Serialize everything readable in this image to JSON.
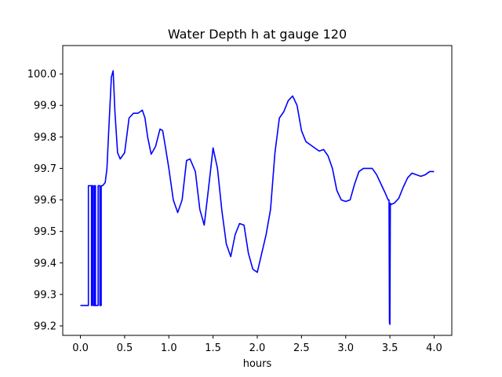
{
  "chart_data": {
    "type": "line",
    "title": "Water Depth h at gauge 120",
    "xlabel": "hours",
    "ylabel": "",
    "xlim": [
      -0.2,
      4.2
    ],
    "ylim": [
      99.17,
      100.09
    ],
    "grid": false,
    "x_ticks": [
      {
        "value": 0.0,
        "label": "0.0"
      },
      {
        "value": 0.5,
        "label": "0.5"
      },
      {
        "value": 1.0,
        "label": "1.0"
      },
      {
        "value": 1.5,
        "label": "1.5"
      },
      {
        "value": 2.0,
        "label": "2.0"
      },
      {
        "value": 2.5,
        "label": "2.5"
      },
      {
        "value": 3.0,
        "label": "3.0"
      },
      {
        "value": 3.5,
        "label": "3.5"
      },
      {
        "value": 4.0,
        "label": "4.0"
      }
    ],
    "y_ticks": [
      {
        "value": 99.2,
        "label": "99.2"
      },
      {
        "value": 99.3,
        "label": "99.3"
      },
      {
        "value": 99.4,
        "label": "99.4"
      },
      {
        "value": 99.5,
        "label": "99.5"
      },
      {
        "value": 99.6,
        "label": "99.6"
      },
      {
        "value": 99.7,
        "label": "99.7"
      },
      {
        "value": 99.8,
        "label": "99.8"
      },
      {
        "value": 99.9,
        "label": "99.9"
      },
      {
        "value": 100.0,
        "label": "100.0"
      }
    ],
    "series": [
      {
        "color": "#0000ff",
        "x": [
          0.0,
          0.09,
          0.09,
          0.125,
          0.125,
          0.13,
          0.13,
          0.145,
          0.145,
          0.16,
          0.16,
          0.17,
          0.17,
          0.2,
          0.2,
          0.22,
          0.22,
          0.235,
          0.235,
          0.25,
          0.28,
          0.3,
          0.32,
          0.35,
          0.37,
          0.39,
          0.42,
          0.45,
          0.5,
          0.55,
          0.6,
          0.65,
          0.7,
          0.73,
          0.76,
          0.8,
          0.85,
          0.9,
          0.93,
          0.96,
          1.0,
          1.05,
          1.1,
          1.15,
          1.2,
          1.24,
          1.3,
          1.35,
          1.4,
          1.45,
          1.5,
          1.55,
          1.6,
          1.65,
          1.7,
          1.75,
          1.8,
          1.85,
          1.9,
          1.95,
          2.0,
          2.05,
          2.1,
          2.15,
          2.2,
          2.25,
          2.3,
          2.35,
          2.4,
          2.45,
          2.5,
          2.55,
          2.6,
          2.65,
          2.7,
          2.75,
          2.8,
          2.85,
          2.9,
          2.95,
          3.0,
          3.05,
          3.1,
          3.15,
          3.2,
          3.25,
          3.3,
          3.35,
          3.4,
          3.45,
          3.48,
          3.49,
          3.495,
          3.5,
          3.505,
          3.51,
          3.55,
          3.6,
          3.65,
          3.7,
          3.75,
          3.8,
          3.85,
          3.9,
          3.95,
          4.0
        ],
        "y": [
          99.265,
          99.265,
          99.645,
          99.645,
          99.265,
          99.265,
          99.645,
          99.645,
          99.265,
          99.265,
          99.645,
          99.645,
          99.265,
          99.265,
          99.645,
          99.645,
          99.265,
          99.265,
          99.645,
          99.645,
          99.655,
          99.7,
          99.82,
          99.99,
          100.01,
          99.88,
          99.75,
          99.73,
          99.75,
          99.86,
          99.875,
          99.875,
          99.885,
          99.86,
          99.8,
          99.745,
          99.77,
          99.825,
          99.82,
          99.77,
          99.7,
          99.6,
          99.56,
          99.6,
          99.725,
          99.73,
          99.69,
          99.57,
          99.52,
          99.64,
          99.765,
          99.7,
          99.565,
          99.46,
          99.42,
          99.49,
          99.525,
          99.52,
          99.43,
          99.38,
          99.37,
          99.43,
          99.49,
          99.57,
          99.75,
          99.86,
          99.88,
          99.915,
          99.93,
          99.9,
          99.82,
          99.785,
          99.775,
          99.765,
          99.755,
          99.76,
          99.74,
          99.7,
          99.63,
          99.6,
          99.595,
          99.6,
          99.65,
          99.69,
          99.7,
          99.7,
          99.7,
          99.68,
          99.65,
          99.62,
          99.6,
          99.6,
          99.21,
          99.205,
          99.59,
          99.585,
          99.59,
          99.605,
          99.64,
          99.67,
          99.685,
          99.68,
          99.675,
          99.68,
          99.69,
          99.69
        ]
      }
    ]
  }
}
